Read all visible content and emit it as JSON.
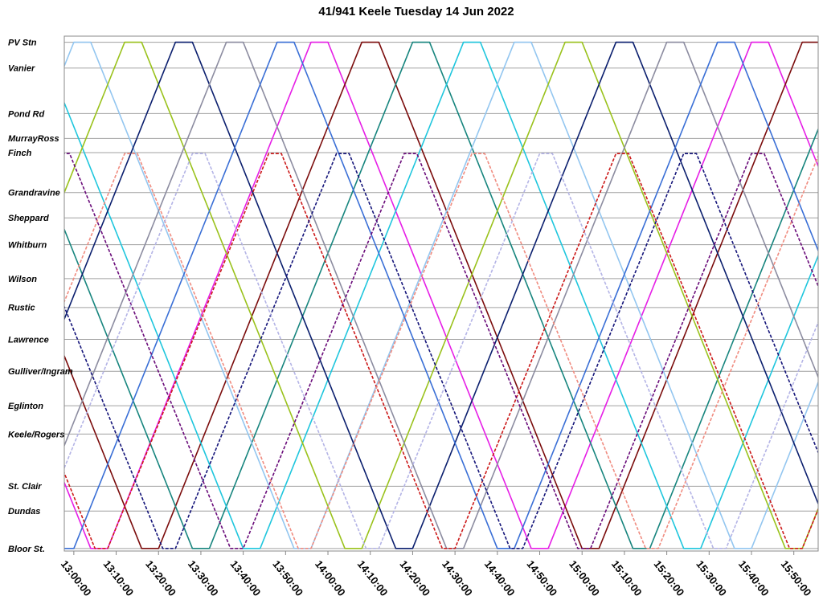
{
  "chart_data": {
    "type": "line",
    "title": "41/941 Keele Tuesday 14 Jun 2022",
    "xlim": [
      "12:57:45",
      "15:55:45"
    ],
    "xticks": [
      "13:00:00",
      "13:10:00",
      "13:20:00",
      "13:30:00",
      "13:40:00",
      "13:50:00",
      "14:00:00",
      "14:10:00",
      "14:20:00",
      "14:30:00",
      "14:40:00",
      "14:50:00",
      "15:00:00",
      "15:10:00",
      "15:20:00",
      "15:30:00",
      "15:40:00",
      "15:50:00"
    ],
    "ylim": [
      -0.5,
      101.2
    ],
    "yticks": [
      {
        "value": 100,
        "label": "PV Stn"
      },
      {
        "value": 94.9,
        "label": "Vanier"
      },
      {
        "value": 85.9,
        "label": "Pond Rd"
      },
      {
        "value": 81.0,
        "label": "MurrayRoss"
      },
      {
        "value": 78.2,
        "label": "Finch"
      },
      {
        "value": 70.3,
        "label": "Grandravine"
      },
      {
        "value": 65.3,
        "label": "Sheppard"
      },
      {
        "value": 60.0,
        "label": "Whitburn"
      },
      {
        "value": 53.3,
        "label": "Wilson"
      },
      {
        "value": 47.6,
        "label": "Rustic"
      },
      {
        "value": 41.3,
        "label": "Lawrence"
      },
      {
        "value": 35.0,
        "label": "Gulliver/Ingram"
      },
      {
        "value": 28.2,
        "label": "Eglinton"
      },
      {
        "value": 22.6,
        "label": "Keele/Rogers"
      },
      {
        "value": 12.3,
        "label": "St. Clair"
      },
      {
        "value": 7.4,
        "label": "Dundas"
      },
      {
        "value": 0,
        "label": "Bloor St."
      }
    ],
    "grid": true,
    "series": [
      {
        "color": "#e61ee6",
        "dashed": false,
        "x": [
          "12:16:00",
          "13:04:00",
          "13:08:00",
          "13:56:00",
          "14:00:00",
          "14:48:00",
          "14:52:00",
          "15:40:00",
          "15:44:00",
          "16:32:00"
        ],
        "values": [
          100,
          0,
          0,
          100,
          100,
          0,
          0,
          100,
          100,
          0
        ]
      },
      {
        "color": "#7b0c0c",
        "dashed": false,
        "x": [
          "12:28:00",
          "13:16:00",
          "13:20:00",
          "14:08:00",
          "14:12:00",
          "15:00:00",
          "15:04:00",
          "15:52:00",
          "15:56:00",
          "16:44:00"
        ],
        "values": [
          100,
          0,
          0,
          100,
          100,
          0,
          0,
          100,
          100,
          0
        ]
      },
      {
        "color": "#17857e",
        "dashed": false,
        "x": [
          "12:40:00",
          "13:28:00",
          "13:32:00",
          "14:20:00",
          "14:24:00",
          "15:12:00",
          "15:16:00",
          "16:04:00"
        ],
        "values": [
          100,
          0,
          0,
          100,
          100,
          0,
          0,
          100
        ]
      },
      {
        "color": "#1fc6dd",
        "dashed": false,
        "x": [
          "12:52:00",
          "13:40:00",
          "13:44:00",
          "14:32:00",
          "14:36:00",
          "15:24:00",
          "15:28:00",
          "16:16:00"
        ],
        "values": [
          100,
          0,
          0,
          100,
          100,
          0,
          0,
          100
        ]
      },
      {
        "color": "#93c6f0",
        "dashed": false,
        "x": [
          "12:12:00",
          "13:00:00",
          "13:04:00",
          "13:52:00",
          "13:56:00",
          "14:44:00",
          "14:48:00",
          "15:36:00",
          "15:40:00",
          "16:28:00"
        ],
        "values": [
          0,
          100,
          100,
          0,
          0,
          100,
          100,
          0,
          0,
          100
        ]
      },
      {
        "color": "#9ac21c",
        "dashed": false,
        "x": [
          "12:24:00",
          "13:12:00",
          "13:16:00",
          "14:04:00",
          "14:08:00",
          "14:56:00",
          "15:00:00",
          "15:48:00",
          "15:52:00",
          "16:40:00"
        ],
        "values": [
          0,
          100,
          100,
          0,
          0,
          100,
          100,
          0,
          0,
          100
        ]
      },
      {
        "color": "#0b1f6e",
        "dashed": false,
        "x": [
          "12:36:00",
          "13:24:00",
          "13:28:00",
          "14:16:00",
          "14:20:00",
          "15:08:00",
          "15:12:00",
          "16:00:00"
        ],
        "values": [
          0,
          100,
          100,
          0,
          0,
          100,
          100,
          0
        ]
      },
      {
        "color": "#8c8ca0",
        "dashed": false,
        "x": [
          "12:48:00",
          "13:36:00",
          "13:40:00",
          "14:28:00",
          "14:32:00",
          "15:20:00",
          "15:24:00",
          "16:12:00"
        ],
        "values": [
          0,
          100,
          100,
          0,
          0,
          100,
          100,
          0
        ]
      },
      {
        "color": "#3a6fd6",
        "dashed": false,
        "x": [
          "12:56:00",
          "13:00:00",
          "13:48:00",
          "13:52:00",
          "14:40:00",
          "14:44:00",
          "15:32:00",
          "15:36:00",
          "16:24:00"
        ],
        "values": [
          0,
          0,
          100,
          100,
          0,
          0,
          100,
          100,
          0
        ]
      },
      {
        "color": "#cc1a1a",
        "dashed": true,
        "x": [
          "12:27:00",
          "13:05:00",
          "13:08:00",
          "13:46:00",
          "13:49:00",
          "14:27:00",
          "14:30:00",
          "15:08:00",
          "15:11:00",
          "15:49:00",
          "15:52:00",
          "16:30:00"
        ],
        "values": [
          78,
          0,
          0,
          78,
          78,
          0,
          0,
          78,
          78,
          0,
          0,
          78
        ]
      },
      {
        "color": "#15157a",
        "dashed": true,
        "x": [
          "12:43:00",
          "13:21:00",
          "13:24:00",
          "14:02:00",
          "14:05:00",
          "14:43:00",
          "14:46:00",
          "15:24:00",
          "15:27:00",
          "16:05:00"
        ],
        "values": [
          78,
          0,
          0,
          78,
          78,
          0,
          0,
          78,
          78,
          0
        ]
      },
      {
        "color": "#6a0c7a",
        "dashed": true,
        "x": [
          "12:56:00",
          "12:59:00",
          "13:37:00",
          "13:40:00",
          "14:18:00",
          "14:21:00",
          "14:59:00",
          "15:02:00",
          "15:40:00",
          "15:43:00",
          "16:21:00"
        ],
        "values": [
          78,
          78,
          0,
          0,
          78,
          78,
          0,
          0,
          78,
          78,
          0
        ]
      },
      {
        "color": "#f08c80",
        "dashed": true,
        "x": [
          "12:34:00",
          "13:12:00",
          "13:15:00",
          "13:53:00",
          "13:56:00",
          "14:34:00",
          "14:37:00",
          "15:15:00",
          "15:18:00",
          "15:56:00",
          "15:59:00"
        ],
        "values": [
          0,
          78,
          78,
          0,
          0,
          78,
          78,
          0,
          0,
          78,
          78
        ]
      },
      {
        "color": "#b4b4e6",
        "dashed": true,
        "x": [
          "12:50:00",
          "13:28:00",
          "13:31:00",
          "14:09:00",
          "14:12:00",
          "14:50:00",
          "14:53:00",
          "15:31:00",
          "15:34:00",
          "16:12:00"
        ],
        "values": [
          0,
          78,
          78,
          0,
          0,
          78,
          78,
          0,
          0,
          78
        ]
      }
    ]
  }
}
